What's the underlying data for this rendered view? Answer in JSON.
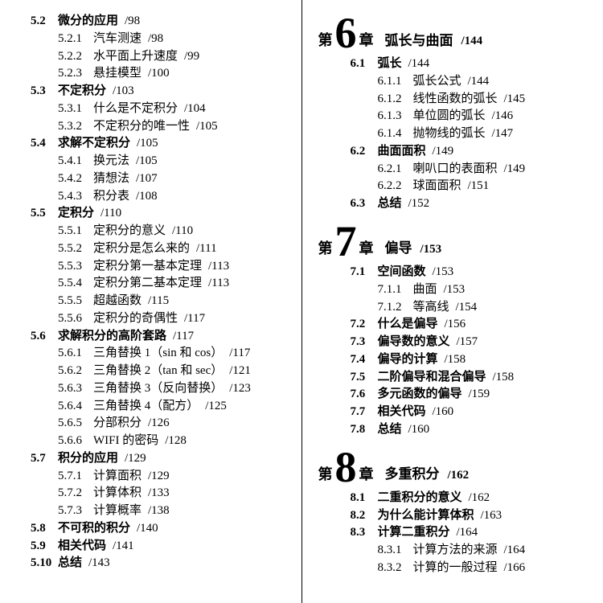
{
  "left": [
    {
      "t": "sec",
      "n": "5.2",
      "title": "微分的应用",
      "pg": "/98"
    },
    {
      "t": "sub",
      "n": "5.2.1",
      "title": "汽车测速",
      "pg": "/98"
    },
    {
      "t": "sub",
      "n": "5.2.2",
      "title": "水平面上升速度",
      "pg": "/99"
    },
    {
      "t": "sub",
      "n": "5.2.3",
      "title": "悬挂模型",
      "pg": "/100"
    },
    {
      "t": "sec",
      "n": "5.3",
      "title": "不定积分",
      "pg": "/103"
    },
    {
      "t": "sub",
      "n": "5.3.1",
      "title": "什么是不定积分",
      "pg": "/104"
    },
    {
      "t": "sub",
      "n": "5.3.2",
      "title": "不定积分的唯一性",
      "pg": "/105"
    },
    {
      "t": "sec",
      "n": "5.4",
      "title": "求解不定积分",
      "pg": "/105"
    },
    {
      "t": "sub",
      "n": "5.4.1",
      "title": "换元法",
      "pg": "/105"
    },
    {
      "t": "sub",
      "n": "5.4.2",
      "title": "猜想法",
      "pg": "/107"
    },
    {
      "t": "sub",
      "n": "5.4.3",
      "title": "积分表",
      "pg": "/108"
    },
    {
      "t": "sec",
      "n": "5.5",
      "title": "定积分",
      "pg": "/110"
    },
    {
      "t": "sub",
      "n": "5.5.1",
      "title": "定积分的意义",
      "pg": "/110"
    },
    {
      "t": "sub",
      "n": "5.5.2",
      "title": "定积分是怎么来的",
      "pg": "/111"
    },
    {
      "t": "sub",
      "n": "5.5.3",
      "title": "定积分第一基本定理",
      "pg": "/113"
    },
    {
      "t": "sub",
      "n": "5.5.4",
      "title": "定积分第二基本定理",
      "pg": "/113"
    },
    {
      "t": "sub",
      "n": "5.5.5",
      "title": "超越函数",
      "pg": "/115"
    },
    {
      "t": "sub",
      "n": "5.5.6",
      "title": "定积分的奇偶性",
      "pg": "/117"
    },
    {
      "t": "sec",
      "n": "5.6",
      "title": "求解积分的高阶套路",
      "pg": "/117"
    },
    {
      "t": "sub",
      "n": "5.6.1",
      "title": "三角替换 1（sin 和 cos）",
      "pg": "/117"
    },
    {
      "t": "sub",
      "n": "5.6.2",
      "title": "三角替换 2（tan 和 sec）",
      "pg": "/121"
    },
    {
      "t": "sub",
      "n": "5.6.3",
      "title": "三角替换 3（反向替换）",
      "pg": "/123"
    },
    {
      "t": "sub",
      "n": "5.6.4",
      "title": "三角替换 4（配方）",
      "pg": "/125"
    },
    {
      "t": "sub",
      "n": "5.6.5",
      "title": "分部积分",
      "pg": "/126"
    },
    {
      "t": "sub",
      "n": "5.6.6",
      "title": "WIFI 的密码",
      "pg": "/128"
    },
    {
      "t": "sec",
      "n": "5.7",
      "title": "积分的应用",
      "pg": "/129"
    },
    {
      "t": "sub",
      "n": "5.7.1",
      "title": "计算面积",
      "pg": "/129"
    },
    {
      "t": "sub",
      "n": "5.7.2",
      "title": "计算体积",
      "pg": "/133"
    },
    {
      "t": "sub",
      "n": "5.7.3",
      "title": "计算概率",
      "pg": "/138"
    },
    {
      "t": "sec",
      "n": "5.8",
      "title": "不可积的积分",
      "pg": "/140"
    },
    {
      "t": "sec",
      "n": "5.9",
      "title": "相关代码",
      "pg": "/141"
    },
    {
      "t": "sec",
      "n": "5.10",
      "title": "总结",
      "pg": "/143"
    }
  ],
  "chapters": [
    {
      "prefix": "第",
      "num": "6",
      "suffix": "章",
      "title": "弧长与曲面",
      "pg": "/144",
      "body": [
        {
          "t": "sec",
          "n": "6.1",
          "title": "弧长",
          "pg": "/144"
        },
        {
          "t": "sub",
          "n": "6.1.1",
          "title": "弧长公式",
          "pg": "/144"
        },
        {
          "t": "sub",
          "n": "6.1.2",
          "title": "线性函数的弧长",
          "pg": "/145"
        },
        {
          "t": "sub",
          "n": "6.1.3",
          "title": "单位圆的弧长",
          "pg": "/146"
        },
        {
          "t": "sub",
          "n": "6.1.4",
          "title": "抛物线的弧长",
          "pg": "/147"
        },
        {
          "t": "sec",
          "n": "6.2",
          "title": "曲面面积",
          "pg": "/149"
        },
        {
          "t": "sub",
          "n": "6.2.1",
          "title": "喇叭口的表面积",
          "pg": "/149"
        },
        {
          "t": "sub",
          "n": "6.2.2",
          "title": "球面面积",
          "pg": "/151"
        },
        {
          "t": "sec",
          "n": "6.3",
          "title": "总结",
          "pg": "/152"
        }
      ]
    },
    {
      "prefix": "第",
      "num": "7",
      "suffix": "章",
      "title": "偏导",
      "pg": "/153",
      "body": [
        {
          "t": "sec",
          "n": "7.1",
          "title": "空间函数",
          "pg": "/153"
        },
        {
          "t": "sub",
          "n": "7.1.1",
          "title": "曲面",
          "pg": "/153"
        },
        {
          "t": "sub",
          "n": "7.1.2",
          "title": "等高线",
          "pg": "/154"
        },
        {
          "t": "sec",
          "n": "7.2",
          "title": "什么是偏导",
          "pg": "/156"
        },
        {
          "t": "sec",
          "n": "7.3",
          "title": "偏导数的意义",
          "pg": "/157"
        },
        {
          "t": "sec",
          "n": "7.4",
          "title": "偏导的计算",
          "pg": "/158"
        },
        {
          "t": "sec",
          "n": "7.5",
          "title": "二阶偏导和混合偏导",
          "pg": "/158"
        },
        {
          "t": "sec",
          "n": "7.6",
          "title": "多元函数的偏导",
          "pg": "/159"
        },
        {
          "t": "sec",
          "n": "7.7",
          "title": "相关代码",
          "pg": "/160"
        },
        {
          "t": "sec",
          "n": "7.8",
          "title": "总结",
          "pg": "/160"
        }
      ]
    },
    {
      "prefix": "第",
      "num": "8",
      "suffix": "章",
      "title": "多重积分",
      "pg": "/162",
      "body": [
        {
          "t": "sec",
          "n": "8.1",
          "title": "二重积分的意义",
          "pg": "/162"
        },
        {
          "t": "sec",
          "n": "8.2",
          "title": "为什么能计算体积",
          "pg": "/163"
        },
        {
          "t": "sec",
          "n": "8.3",
          "title": "计算二重积分",
          "pg": "/164"
        },
        {
          "t": "sub",
          "n": "8.3.1",
          "title": "计算方法的来源",
          "pg": "/164"
        },
        {
          "t": "sub",
          "n": "8.3.2",
          "title": "计算的一般过程",
          "pg": "/166"
        }
      ]
    }
  ]
}
